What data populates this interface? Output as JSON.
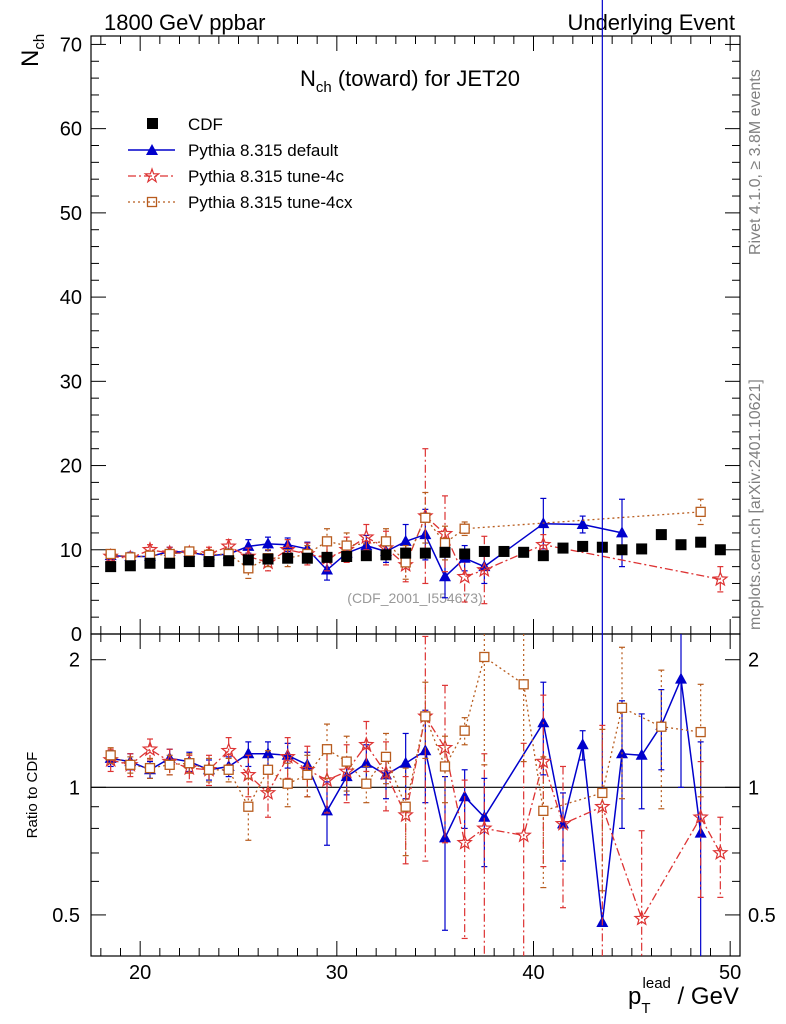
{
  "header": {
    "left": "1800 GeV ppbar",
    "right": "Underlying Event"
  },
  "side": {
    "rivet": "Rivet 4.1.0, ≥ 3.8M events",
    "mcplots": "mcplots.cern.ch [arXiv:2401.10621]"
  },
  "colors": {
    "cdf": "#000000",
    "default": "#0000cc",
    "tune4c": "#dd3333",
    "tune4cx": "#b85c1e"
  },
  "chart_data": [
    {
      "type": "scatter",
      "title": "N_ch (toward) for JET20",
      "title_main": "N",
      "title_sub": "ch",
      "title_rest": " (toward) for JET20",
      "ylabel_main": "N",
      "ylabel_sub": "ch",
      "watermark": "(CDF_2001_I554673)",
      "xlim": [
        17.5,
        50.5
      ],
      "ylim": [
        0,
        71
      ],
      "x_ticks": [
        "20",
        "30",
        "40",
        "50"
      ],
      "y_ticks": [
        "0",
        "10",
        "20",
        "30",
        "40",
        "50",
        "60",
        "70"
      ],
      "legend": [
        "CDF",
        "Pythia 8.315 default",
        "Pythia 8.315 tune-4c",
        "Pythia 8.315 tune-4cx"
      ],
      "series": [
        {
          "name": "CDF",
          "x": [
            18.5,
            19.5,
            20.5,
            21.5,
            22.5,
            23.5,
            24.5,
            25.5,
            26.5,
            27.5,
            28.5,
            29.5,
            30.5,
            31.5,
            32.5,
            33.5,
            34.5,
            35.5,
            36.5,
            37.5,
            38.5,
            39.5,
            40.5,
            41.5,
            42.5,
            43.5,
            44.5,
            45.5,
            46.5,
            47.5,
            48.5,
            49.5
          ],
          "y": [
            8.0,
            8.1,
            8.4,
            8.4,
            8.6,
            8.6,
            8.7,
            8.8,
            8.9,
            9.0,
            9.0,
            9.1,
            9.2,
            9.3,
            9.4,
            9.6,
            9.6,
            9.7,
            9.5,
            9.8,
            9.8,
            9.7,
            9.3,
            10.2,
            10.4,
            10.3,
            10.0,
            10.1,
            11.8,
            10.6,
            10.9,
            10.0
          ]
        },
        {
          "name": "Pythia 8.315 default",
          "x": [
            18.5,
            19.5,
            20.5,
            21.5,
            22.5,
            23.5,
            24.5,
            25.5,
            26.5,
            27.5,
            28.5,
            29.5,
            30.5,
            31.5,
            32.5,
            33.5,
            34.5,
            35.5,
            36.5,
            37.5,
            40.5,
            42.5,
            44.5
          ],
          "y": [
            9.3,
            9.2,
            9.2,
            9.8,
            9.7,
            9.3,
            9.5,
            10.4,
            10.7,
            10.6,
            10.1,
            7.6,
            9.6,
            10.5,
            9.8,
            11.0,
            11.8,
            6.8,
            9.0,
            8.0,
            13.1,
            13.0,
            12.0
          ],
          "err": [
            0.5,
            0.5,
            0.5,
            0.5,
            0.6,
            0.6,
            0.6,
            0.8,
            0.8,
            0.8,
            0.8,
            1.2,
            1.0,
            1.2,
            1.3,
            2.0,
            3.0,
            2.5,
            1.5,
            2.0,
            3.0,
            1.0,
            4.0
          ]
        },
        {
          "name": "Pythia 8.315 tune-4c",
          "x": [
            18.5,
            19.5,
            20.5,
            21.5,
            22.5,
            23.5,
            24.5,
            25.5,
            26.5,
            27.5,
            28.5,
            29.5,
            30.5,
            31.5,
            32.5,
            33.5,
            34.5,
            35.5,
            36.5,
            37.5,
            40.5,
            49.5
          ],
          "y": [
            9.2,
            9.0,
            10.0,
            9.6,
            9.6,
            9.5,
            10.4,
            9.2,
            8.5,
            10.0,
            9.5,
            9.0,
            10.0,
            11.5,
            10.2,
            8.2,
            14.0,
            11.9,
            6.8,
            7.6,
            10.6,
            6.5
          ],
          "err": [
            0.6,
            0.6,
            0.6,
            0.7,
            0.7,
            0.8,
            0.8,
            1.0,
            1.0,
            1.2,
            1.3,
            1.5,
            1.5,
            1.5,
            2.0,
            2.0,
            8.0,
            4.5,
            3.0,
            4.0,
            1.2,
            1.5
          ]
        },
        {
          "name": "Pythia 8.315 tune-4cx",
          "x": [
            18.5,
            19.5,
            20.5,
            21.5,
            22.5,
            23.5,
            24.5,
            25.5,
            26.5,
            27.5,
            28.5,
            29.5,
            30.5,
            32.5,
            33.5,
            34.5,
            35.5,
            36.5,
            48.5
          ],
          "y": [
            9.5,
            9.1,
            9.3,
            9.5,
            9.8,
            9.4,
            9.5,
            7.8,
            9.0,
            9.0,
            9.5,
            11.0,
            10.5,
            11.0,
            8.5,
            13.8,
            10.8,
            12.5,
            14.5
          ],
          "err": [
            0.4,
            0.4,
            0.5,
            0.5,
            0.5,
            0.6,
            0.6,
            1.2,
            1.0,
            1.0,
            1.0,
            1.5,
            1.5,
            1.5,
            2.0,
            3.0,
            2.0,
            0.8,
            1.5
          ]
        }
      ]
    },
    {
      "type": "scatter",
      "title": "",
      "ylabel": "Ratio to CDF",
      "xlabel_main": "p",
      "xlabel_sub": "T",
      "xlabel_sup": "lead",
      "xlabel_rest": " / GeV",
      "xlim": [
        17.5,
        50.5
      ],
      "ylim": [
        0.4,
        2.3
      ],
      "y_ticks_major": [
        "0.5",
        "1",
        "2"
      ],
      "ref_line": 1,
      "series": [
        {
          "name": "Pythia 8.315 default",
          "x": [
            18.5,
            19.5,
            20.5,
            21.5,
            22.5,
            23.5,
            24.5,
            25.5,
            26.5,
            27.5,
            28.5,
            29.5,
            30.5,
            31.5,
            32.5,
            33.5,
            34.5,
            35.5,
            36.5,
            37.5,
            40.5,
            41.5,
            42.5,
            43.5,
            44.5,
            45.5,
            46.5,
            47.5,
            48.5
          ],
          "y": [
            1.17,
            1.15,
            1.1,
            1.17,
            1.15,
            1.1,
            1.12,
            1.2,
            1.2,
            1.19,
            1.13,
            0.88,
            1.06,
            1.14,
            1.07,
            1.14,
            1.22,
            0.76,
            0.95,
            0.85,
            1.42,
            0.82,
            1.26,
            0.48,
            1.2,
            1.19,
            1.4,
            1.8,
            0.78
          ],
          "err": [
            0.05,
            0.05,
            0.05,
            0.06,
            0.06,
            0.06,
            0.06,
            0.08,
            0.08,
            0.08,
            0.08,
            0.15,
            0.1,
            0.12,
            0.13,
            0.2,
            0.3,
            0.3,
            0.15,
            0.2,
            0.35,
            0.15,
            0.1,
            0.5,
            0.4,
            0.3,
            0.3,
            0.8,
            0.5
          ]
        },
        {
          "name": "Pythia 8.315 tune-4c",
          "x": [
            18.5,
            19.5,
            20.5,
            21.5,
            22.5,
            23.5,
            24.5,
            25.5,
            26.5,
            27.5,
            28.5,
            29.5,
            30.5,
            31.5,
            32.5,
            33.5,
            34.5,
            35.5,
            36.5,
            37.5,
            39.5,
            40.5,
            41.5,
            43.5,
            45.5,
            48.5,
            49.5
          ],
          "y": [
            1.16,
            1.13,
            1.23,
            1.15,
            1.11,
            1.1,
            1.22,
            1.07,
            0.97,
            1.18,
            1.1,
            1.04,
            1.09,
            1.26,
            1.08,
            0.86,
            1.47,
            1.24,
            0.74,
            0.8,
            0.77,
            1.15,
            0.82,
            0.9,
            0.49,
            0.85,
            0.7
          ],
          "err": [
            0.07,
            0.07,
            0.07,
            0.08,
            0.08,
            0.09,
            0.09,
            0.12,
            0.12,
            0.13,
            0.15,
            0.17,
            0.17,
            0.17,
            0.2,
            0.2,
            0.8,
            0.5,
            0.3,
            0.4,
            0.5,
            0.5,
            0.3,
            0.5,
            0.3,
            0.3,
            0.15
          ]
        },
        {
          "name": "Pythia 8.315 tune-4cx",
          "x": [
            18.5,
            19.5,
            20.5,
            21.5,
            22.5,
            23.5,
            24.5,
            25.5,
            26.5,
            27.5,
            28.5,
            29.5,
            30.5,
            31.5,
            32.5,
            33.5,
            34.5,
            35.5,
            36.5,
            37.5,
            39.5,
            40.5,
            43.5,
            44.5,
            46.5,
            48.5
          ],
          "y": [
            1.19,
            1.13,
            1.11,
            1.13,
            1.14,
            1.1,
            1.1,
            0.9,
            1.1,
            1.02,
            1.07,
            1.23,
            1.15,
            1.02,
            1.18,
            0.9,
            1.47,
            1.12,
            1.36,
            2.03,
            1.75,
            0.88,
            0.97,
            1.54,
            1.39,
            1.35
          ],
          "err": [
            0.05,
            0.05,
            0.06,
            0.06,
            0.06,
            0.07,
            0.07,
            0.15,
            0.12,
            0.12,
            0.12,
            0.18,
            0.17,
            0.1,
            0.16,
            0.21,
            0.3,
            0.2,
            0.1,
            0.9,
            0.6,
            0.3,
            0.4,
            0.6,
            0.5,
            0.4
          ]
        }
      ]
    }
  ]
}
